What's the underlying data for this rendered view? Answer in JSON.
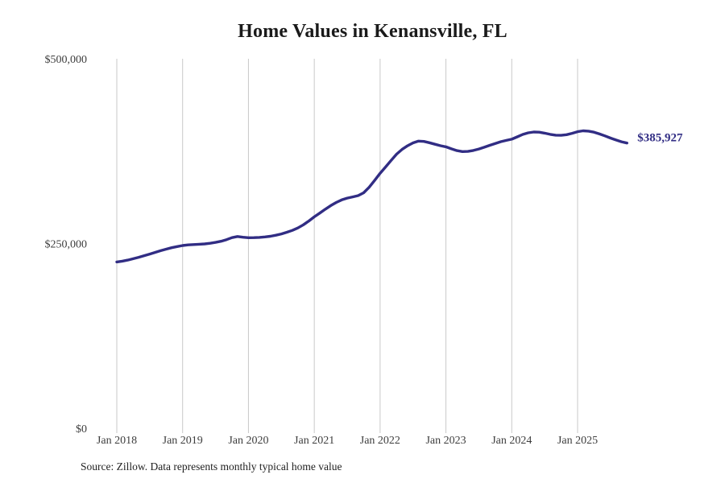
{
  "title": "Home Values in Kenansville, FL",
  "source_note": "Source: Zillow. Data represents monthly typical home value",
  "latest_value_label": "$385,927",
  "colors": {
    "line": "#312d84",
    "latest_label": "#312d84",
    "grid": "#c9c9c9",
    "title_text": "#1a1a1a",
    "axis_text": "#3d3d3d",
    "background": "#ffffff"
  },
  "chart_data": {
    "type": "line",
    "title": "Home Values in Kenansville, FL",
    "xlabel": "",
    "ylabel": "",
    "unit": "USD",
    "frequency": "monthly",
    "x_start": "2018-01",
    "x_end": "2025-10",
    "ylim": [
      0,
      500000
    ],
    "grid": "vertical-only",
    "legend": "none",
    "x_ticks": [
      "Jan 2018",
      "Jan 2019",
      "Jan 2020",
      "Jan 2021",
      "Jan 2022",
      "Jan 2023",
      "Jan 2024",
      "Jan 2025"
    ],
    "y_ticks": [
      {
        "label": "$500,000",
        "value": 500000
      },
      {
        "label": "$250,000",
        "value": 250000
      },
      {
        "label": "$0",
        "value": 0
      }
    ],
    "latest_value": 385927,
    "series": [
      {
        "name": "Typical home value",
        "monthly_values": [
          225000,
          226100,
          227600,
          229400,
          231400,
          233500,
          235700,
          238000,
          240300,
          242400,
          244300,
          245900,
          247300,
          248100,
          248600,
          249000,
          249500,
          250300,
          251500,
          253100,
          255200,
          257900,
          259500,
          258500,
          257800,
          257900,
          258300,
          258900,
          259800,
          261200,
          263000,
          265200,
          267800,
          271000,
          275300,
          280400,
          286100,
          291200,
          296400,
          301300,
          305600,
          309000,
          311400,
          313100,
          314800,
          318600,
          326000,
          335300,
          345100,
          353600,
          362400,
          370900,
          377300,
          382200,
          386200,
          388600,
          388100,
          386400,
          384300,
          382400,
          380800,
          378100,
          375700,
          374400,
          374600,
          375900,
          377900,
          380300,
          382900,
          385400,
          387800,
          389500,
          391200,
          394300,
          397600,
          399800,
          400900,
          400600,
          399300,
          397700,
          396600,
          396400,
          397300,
          399100,
          401300,
          402500,
          402100,
          400600,
          398300,
          395600,
          392700,
          390100,
          387700,
          385927
        ]
      }
    ]
  }
}
